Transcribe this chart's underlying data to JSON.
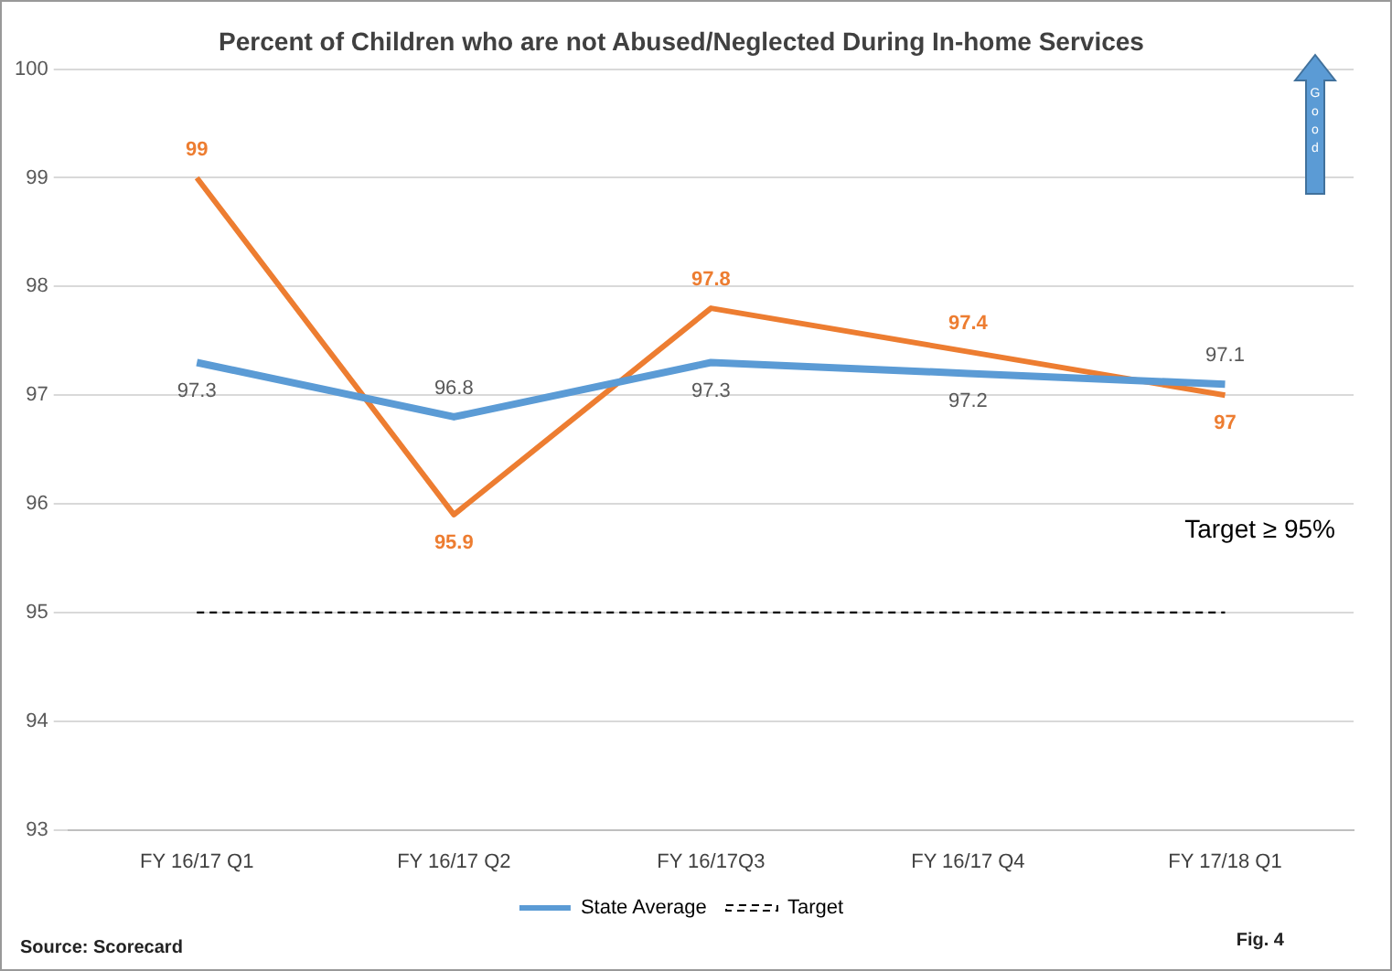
{
  "chart_data": {
    "type": "line",
    "title": "Percent of Children who are not Abused/Neglected During In-home Services",
    "categories": [
      "FY 16/17 Q1",
      "FY 16/17 Q2",
      "FY 16/17Q3",
      "FY 16/17 Q4",
      "FY 17/18 Q1"
    ],
    "series": [
      {
        "name": "State Average",
        "color": "#5b9bd5",
        "values": [
          97.3,
          96.8,
          97.3,
          97.2,
          97.1
        ]
      },
      {
        "color": "#ed7d31",
        "values": [
          99,
          95.9,
          97.8,
          97.4,
          97
        ]
      }
    ],
    "ylim": [
      93,
      100
    ],
    "yticks": [
      93,
      94,
      95,
      96,
      97,
      98,
      99,
      100
    ],
    "grid": "y",
    "legend": "bottom",
    "marker": "none",
    "line_style": "solid",
    "data_labels": true,
    "ref_lines": [
      {
        "axis": "y",
        "value": 95,
        "label": "Target",
        "color": "#000000",
        "line_style": "dashed"
      }
    ],
    "annotations": [
      "Target ≥ 95%",
      "Good",
      "Source: Scorecard",
      "Fig. 4"
    ]
  }
}
